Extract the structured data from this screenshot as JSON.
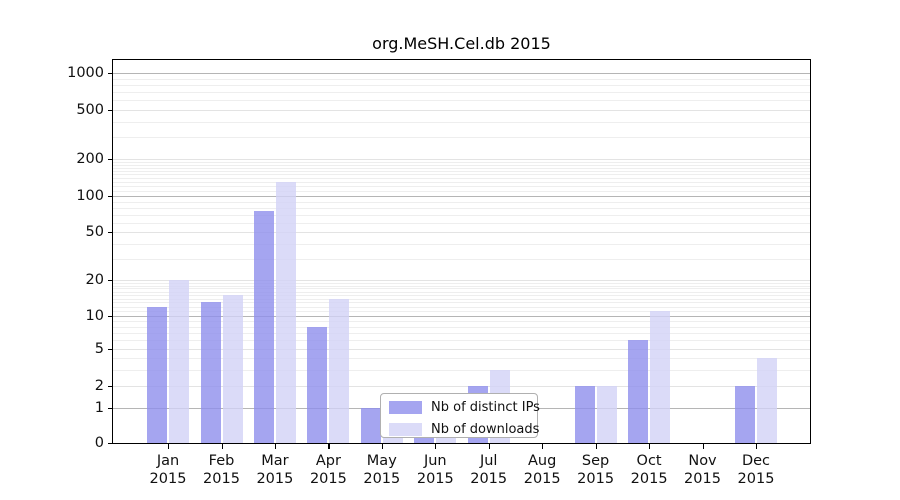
{
  "title": "org.MeSH.Cel.db 2015",
  "chart_data": {
    "type": "bar",
    "title": "org.MeSH.Cel.db 2015",
    "categories": [
      "Jan",
      "Feb",
      "Mar",
      "Apr",
      "May",
      "Jun",
      "Jul",
      "Aug",
      "Sep",
      "Oct",
      "Nov",
      "Dec"
    ],
    "x_tick_second_line": "2015",
    "series": [
      {
        "name": "Nb of distinct IPs",
        "color": "#a5a5f0",
        "fill": "rgba(143,143,236,0.8)",
        "values": [
          12,
          13,
          75,
          8,
          1,
          1,
          2,
          0,
          2,
          6,
          0,
          2
        ]
      },
      {
        "name": "Nb of downloads",
        "color": "#dbdbf8",
        "fill": "rgba(210,210,246,0.8)",
        "values": [
          20,
          15,
          130,
          14,
          1,
          1,
          3,
          0,
          2,
          11,
          0,
          4
        ]
      }
    ],
    "y_ticks": [
      0,
      1,
      2,
      5,
      10,
      20,
      50,
      100,
      200,
      500,
      1000
    ],
    "y_scale": "log",
    "ylim": [
      0,
      1200
    ],
    "grid": true,
    "legend_position": "inside-bottom-center",
    "colors": {
      "major_grid": "#b5b5b5",
      "labeled_grid": "#e3e3e3",
      "minor_grid": "#eeeeee",
      "axis": "#000000",
      "background": "#ffffff"
    }
  }
}
